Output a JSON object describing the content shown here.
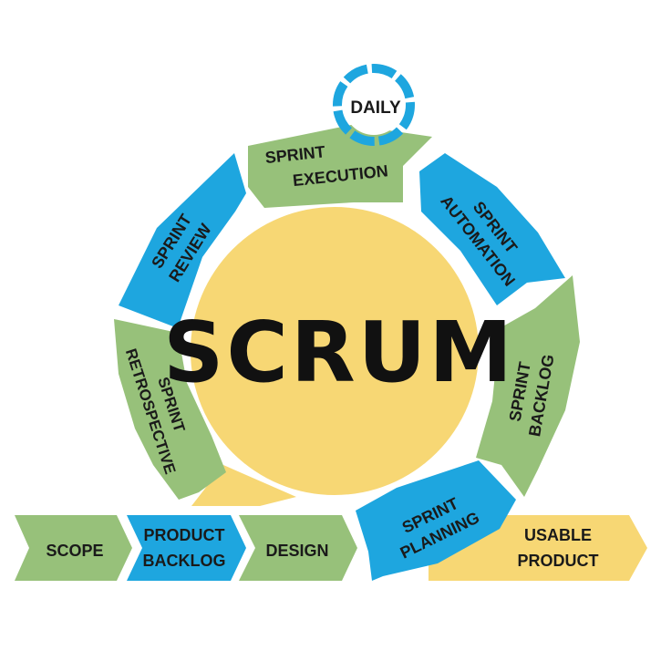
{
  "center": {
    "label": "SCRUM"
  },
  "daily": {
    "label": "DAILY"
  },
  "cycle": {
    "execution": {
      "line1": "SPRINT",
      "line2": "EXECUTION"
    },
    "automation": {
      "line1": "SPRINT",
      "line2": "AUTOMATION"
    },
    "backlog": {
      "line1": "SPRINT",
      "line2": "BACKLOG"
    },
    "planning": {
      "line1": "SPRINT",
      "line2": "PLANNING"
    },
    "retrospective": {
      "line1": "SPRINT",
      "line2": "RETROSPECTIVE"
    },
    "review": {
      "line1": "SPRINT",
      "line2": "REVIEW"
    }
  },
  "flow": {
    "scope": "SCOPE",
    "product_backlog": {
      "line1": "PRODUCT",
      "line2": "BACKLOG"
    },
    "design": "DESIGN",
    "usable_product": {
      "line1": "USABLE",
      "line2": "PRODUCT"
    }
  },
  "colors": {
    "green": "#97c17a",
    "blue": "#1ea6df",
    "yellow": "#f7d774",
    "text": "#1a1a1a"
  }
}
